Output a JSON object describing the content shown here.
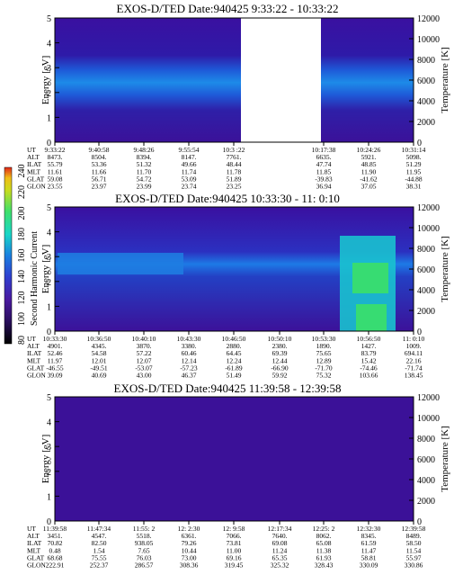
{
  "page": {
    "colorbar": {
      "label": "Second Harmonic Current",
      "ticks": [
        "240",
        "220",
        "200",
        "180",
        "160",
        "140",
        "120",
        "100",
        "80"
      ],
      "colors": [
        "#000000",
        "#2a0f5e",
        "#4a1aa0",
        "#2f3fd0",
        "#1a7fe0",
        "#19d6c8",
        "#3fe06b",
        "#c9dc1f",
        "#f0bd17",
        "#e0261a"
      ]
    }
  },
  "chart_data": [
    {
      "type": "heatmap",
      "title": "EXOS-D/TED   Date:940425   9:33:22 - 10:33:22",
      "ylabel": "Energy [eV]",
      "y2label": "Temperature [K]",
      "ylim": [
        0,
        5
      ],
      "yticks": [
        "0",
        "1",
        "2",
        "3",
        "4",
        "5"
      ],
      "y2lim": [
        0,
        12000
      ],
      "y2ticks": [
        "0",
        "2000",
        "4000",
        "6000",
        "8000",
        "10000",
        "12000"
      ],
      "data_gap": {
        "from_time": "10:3 :22",
        "to_time": "10:17:38"
      },
      "table": {
        "row_labels": [
          "UT",
          "ALT",
          "ILAT",
          "MLT",
          "GLAT",
          "GLON"
        ],
        "columns": [
          [
            "9:33:22",
            "8473.",
            "55.79",
            "11.61",
            "59.08",
            "23.55"
          ],
          [
            "9:40:58",
            "8504.",
            "53.36",
            "11.66",
            "56.71",
            "23.97"
          ],
          [
            "9:48:26",
            "8394.",
            "51.32",
            "11.70",
            "54.72",
            "23.99"
          ],
          [
            "9:55:54",
            "8147.",
            "49.66",
            "11.74",
            "53.09",
            "23.74"
          ],
          [
            "10:3 :22",
            "7761.",
            "48.44",
            "11.78",
            "51.89",
            "23.25"
          ],
          [
            "",
            "",
            "",
            "",
            "",
            ""
          ],
          [
            "10:17:38",
            "6635.",
            "47.74",
            "11.85",
            "-39.83",
            "36.94"
          ],
          [
            "10:24:26",
            "5921.",
            "48.85",
            "11.90",
            "-41.62",
            "37.05"
          ],
          [
            "10:31:14",
            "5098.",
            "51.29",
            "11.95",
            "-44.88",
            "38.31"
          ]
        ]
      }
    },
    {
      "type": "heatmap",
      "title": "EXOS-D/TED   Date:940425  10:33:30 - 11: 0:10",
      "ylabel": "Energy [eV]",
      "y2label": "Temperature [K]",
      "ylim": [
        0,
        5
      ],
      "yticks": [
        "0",
        "1",
        "2",
        "3",
        "4",
        "5"
      ],
      "y2lim": [
        0,
        12000
      ],
      "y2ticks": [
        "0",
        "2000",
        "4000",
        "6000",
        "8000",
        "10000",
        "12000"
      ],
      "table": {
        "row_labels": [
          "UT",
          "ALT",
          "ILAT",
          "MLT",
          "GLAT",
          "GLON"
        ],
        "columns": [
          [
            "10:33:30",
            "4901.",
            "52.46",
            "11.97",
            "-46.55",
            "39.09"
          ],
          [
            "10:36:50",
            "4345.",
            "54.58",
            "12.01",
            "-49.51",
            "40.69"
          ],
          [
            "10:40:10",
            "3870.",
            "57.22",
            "12.07",
            "-53.07",
            "43.00"
          ],
          [
            "10:43:30",
            "3380.",
            "60.46",
            "12.14",
            "-57.23",
            "46.37"
          ],
          [
            "10:46:50",
            "2880.",
            "64.45",
            "12.24",
            "-61.89",
            "51.49"
          ],
          [
            "10:50:10",
            "2380.",
            "69.39",
            "12.44",
            "-66.90",
            "59.92"
          ],
          [
            "10:53:30",
            "1890.",
            "75.65",
            "12.89",
            "-71.70",
            "75.32"
          ],
          [
            "10:56:50",
            "1427.",
            "83.79",
            "15.42",
            "-74.46",
            "103.66"
          ],
          [
            "11: 0:10",
            "1009.",
            "694.11",
            "22.16",
            "-71.74",
            "138.45"
          ]
        ]
      }
    },
    {
      "type": "heatmap",
      "title": "EXOS-D/TED   Date:940425  11:39:58 - 12:39:58",
      "ylabel": "Energy [eV]",
      "y2label": "Temperature [K]",
      "ylim": [
        0,
        5
      ],
      "yticks": [
        "0",
        "1",
        "2",
        "3",
        "4",
        "5"
      ],
      "y2lim": [
        0,
        12000
      ],
      "y2ticks": [
        "0",
        "2000",
        "4000",
        "6000",
        "8000",
        "10000",
        "12000"
      ],
      "table": {
        "row_labels": [
          "UT",
          "ALT",
          "ILAT",
          "MLT",
          "GLAT",
          "GLON"
        ],
        "columns": [
          [
            "11:39:58",
            "3451.",
            "70.82",
            "0.48",
            "68.68",
            "222.91"
          ],
          [
            "11:47:34",
            "4547.",
            "82.50",
            "1.54",
            "75.55",
            "252.37"
          ],
          [
            "11:55: 2",
            "5518.",
            "938.05",
            "7.65",
            "76.03",
            "286.57"
          ],
          [
            "12: 2:30",
            "6361.",
            "79.26",
            "10.44",
            "73.00",
            "308.36"
          ],
          [
            "12: 9:58",
            "7066.",
            "73.81",
            "11.00",
            "69.16",
            "319.45"
          ],
          [
            "12:17:34",
            "7640.",
            "69.08",
            "11.24",
            "65.35",
            "325.32"
          ],
          [
            "12:25: 2",
            "8062.",
            "65.08",
            "11.38",
            "61.93",
            "328.43"
          ],
          [
            "12:32:30",
            "8345.",
            "61.59",
            "11.47",
            "58.81",
            "330.09"
          ],
          [
            "12:39:58",
            "8489.",
            "58.50",
            "11.54",
            "55.97",
            "330.86"
          ]
        ]
      }
    }
  ]
}
